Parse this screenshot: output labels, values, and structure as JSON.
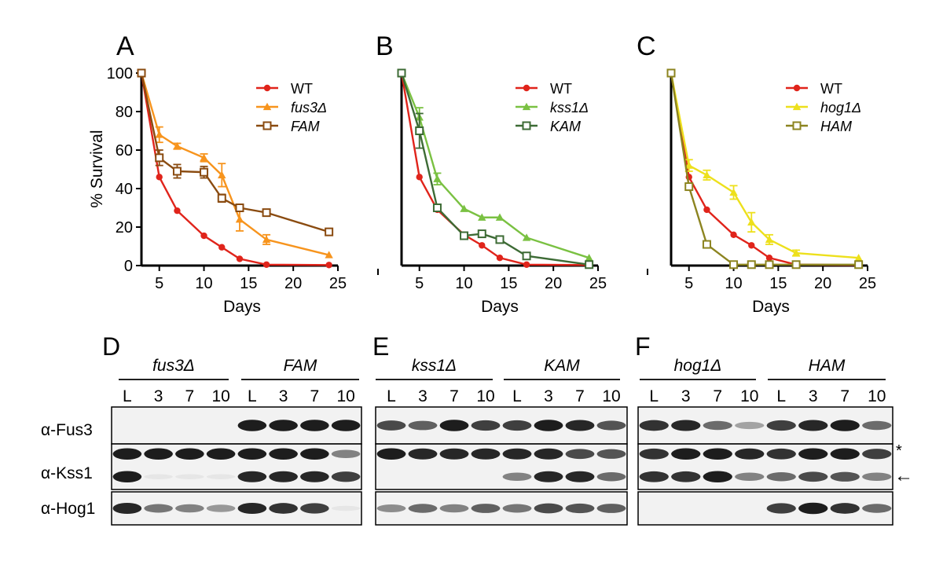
{
  "chart_data": [
    {
      "type": "line",
      "panel": "A",
      "xlabel": "Days",
      "ylabel": "% Survival",
      "xlim": [
        3,
        25
      ],
      "ylim": [
        0,
        100
      ],
      "xticks": [
        5,
        10,
        15,
        20,
        25
      ],
      "yticks": [
        0,
        20,
        40,
        60,
        80,
        100
      ],
      "legend_position": "top-right",
      "series": [
        {
          "name": "WT",
          "italic": false,
          "marker": "circle",
          "color": "#e0241b",
          "x": [
            3,
            5,
            7,
            10,
            12,
            14,
            17,
            24
          ],
          "y": [
            100,
            46,
            28.5,
            15.5,
            9.5,
            3.5,
            0.5,
            0.3
          ],
          "err": [
            0,
            0,
            0,
            0,
            0,
            0,
            0,
            0
          ]
        },
        {
          "name": "fus3Δ",
          "italic": true,
          "marker": "triangle",
          "color": "#f7941d",
          "x": [
            3,
            5,
            7,
            10,
            12,
            14,
            17,
            24
          ],
          "y": [
            100,
            68,
            62,
            56,
            47,
            24,
            13.5,
            5.5
          ],
          "err": [
            0,
            4,
            1.5,
            2,
            6,
            6,
            2.5,
            0
          ]
        },
        {
          "name": "FAM",
          "italic": true,
          "marker": "square",
          "color": "#8a4b10",
          "x": [
            3,
            5,
            7,
            10,
            12,
            14,
            17,
            24
          ],
          "y": [
            100,
            56,
            49,
            48.5,
            35,
            30,
            27.5,
            17.5
          ],
          "err": [
            0,
            4,
            3.5,
            3,
            2,
            0,
            0,
            0
          ]
        }
      ]
    },
    {
      "type": "line",
      "panel": "B",
      "xlabel": "Days",
      "ylabel": "",
      "xlim": [
        3,
        25
      ],
      "ylim": [
        0,
        100
      ],
      "xticks": [
        5,
        10,
        15,
        20,
        25
      ],
      "yticks": [],
      "legend_position": "top-right",
      "series": [
        {
          "name": "WT",
          "italic": false,
          "marker": "circle",
          "color": "#e0241b",
          "x": [
            3,
            5,
            7,
            10,
            12,
            14,
            17,
            24
          ],
          "y": [
            100,
            46,
            29,
            16,
            10.5,
            4,
            0.5,
            0.3
          ],
          "err": [
            0,
            0,
            0,
            0,
            0,
            0,
            0,
            0
          ]
        },
        {
          "name": "kss1Δ",
          "italic": true,
          "marker": "triangle",
          "color": "#7ac142",
          "x": [
            3,
            5,
            7,
            10,
            12,
            14,
            17,
            24
          ],
          "y": [
            100,
            77,
            45,
            29.5,
            25,
            25,
            14.5,
            4
          ],
          "err": [
            0,
            5,
            3,
            0,
            0,
            0,
            0,
            0
          ]
        },
        {
          "name": "KAM",
          "italic": true,
          "marker": "square",
          "color": "#3d6b35",
          "x": [
            3,
            5,
            7,
            10,
            12,
            14,
            17,
            24
          ],
          "y": [
            100,
            70,
            30,
            15.5,
            16.5,
            13.5,
            5,
            0.5
          ],
          "err": [
            0,
            9,
            0,
            0,
            0,
            0,
            0,
            0
          ]
        }
      ]
    },
    {
      "type": "line",
      "panel": "C",
      "xlabel": "Days",
      "ylabel": "",
      "xlim": [
        3,
        25
      ],
      "ylim": [
        0,
        100
      ],
      "xticks": [
        5,
        10,
        15,
        20,
        25
      ],
      "yticks": [],
      "legend_position": "top-right",
      "series": [
        {
          "name": "WT",
          "italic": false,
          "marker": "circle",
          "color": "#e0241b",
          "x": [
            3,
            5,
            7,
            10,
            12,
            14,
            17,
            24
          ],
          "y": [
            100,
            46,
            29,
            16,
            10.5,
            4,
            0.5,
            0.3
          ],
          "err": [
            0,
            0,
            0,
            0,
            0,
            0,
            0,
            0
          ]
        },
        {
          "name": "hog1Δ",
          "italic": true,
          "marker": "triangle",
          "color": "#ede01c",
          "x": [
            3,
            5,
            7,
            10,
            12,
            14,
            17,
            24
          ],
          "y": [
            100,
            52,
            47,
            38,
            22.5,
            13.5,
            6.5,
            4
          ],
          "err": [
            0,
            3,
            2.5,
            3.5,
            5,
            2.5,
            1.5,
            0
          ]
        },
        {
          "name": "HAM",
          "italic": true,
          "marker": "square",
          "color": "#8c8420",
          "x": [
            3,
            5,
            7,
            10,
            12,
            14,
            17,
            24
          ],
          "y": [
            100,
            41,
            11,
            0.5,
            0.5,
            0.5,
            0.5,
            0.5
          ],
          "err": [
            0,
            0,
            0,
            0,
            0,
            0,
            0,
            0
          ]
        }
      ]
    },
    {
      "type": "western-blot",
      "panels": [
        {
          "letter": "D",
          "groups": [
            {
              "label": "fus3Δ",
              "lanes": [
                "L",
                "3",
                "7",
                "10"
              ]
            },
            {
              "label": "FAM",
              "lanes": [
                "L",
                "3",
                "7",
                "10"
              ]
            }
          ]
        },
        {
          "letter": "E",
          "groups": [
            {
              "label": "kss1Δ",
              "lanes": [
                "L",
                "3",
                "7",
                "10"
              ]
            },
            {
              "label": "KAM",
              "lanes": [
                "L",
                "3",
                "7",
                "10"
              ]
            }
          ]
        },
        {
          "letter": "F",
          "groups": [
            {
              "label": "hog1Δ",
              "lanes": [
                "L",
                "3",
                "7",
                "10"
              ]
            },
            {
              "label": "HAM",
              "lanes": [
                "L",
                "3",
                "7",
                "10"
              ]
            }
          ]
        }
      ],
      "row_labels": [
        "α-Fus3",
        "α-Kss1",
        "α-Hog1"
      ],
      "annotations": {
        "asterisk": "*",
        "arrow": "←"
      },
      "band_intensity": {
        "D": {
          "Fus3": [
            [
              0,
              0,
              0,
              0,
              0.95,
              0.95,
              0.95,
              0.95
            ]
          ],
          "Kss1": [
            [
              0.95,
              0.95,
              0.95,
              0.95,
              0.95,
              0.95,
              0.95,
              0.5
            ],
            [
              0.95,
              0.05,
              0.05,
              0.05,
              0.9,
              0.9,
              0.9,
              0.8
            ]
          ],
          "Hog1": [
            [
              0.9,
              0.55,
              0.5,
              0.4,
              0.9,
              0.85,
              0.8,
              0.05
            ]
          ]
        },
        "E": {
          "Fus3": [
            [
              0.75,
              0.65,
              0.95,
              0.8,
              0.8,
              0.95,
              0.9,
              0.7
            ]
          ],
          "Kss1": [
            [
              0.95,
              0.9,
              0.9,
              0.9,
              0.9,
              0.9,
              0.75,
              0.7
            ],
            [
              0,
              0,
              0,
              0,
              0.5,
              0.9,
              0.9,
              0.6
            ]
          ],
          "Hog1": [
            [
              0.45,
              0.6,
              0.5,
              0.65,
              0.55,
              0.75,
              0.7,
              0.65
            ]
          ]
        },
        "F": {
          "Fus3": [
            [
              0.85,
              0.9,
              0.6,
              0.35,
              0.8,
              0.9,
              0.95,
              0.6
            ]
          ],
          "Kss1": [
            [
              0.85,
              0.95,
              0.95,
              0.9,
              0.85,
              0.95,
              0.95,
              0.8
            ],
            [
              0.85,
              0.85,
              0.95,
              0.5,
              0.6,
              0.75,
              0.7,
              0.5
            ]
          ],
          "Hog1": [
            [
              0,
              0,
              0,
              0,
              0.8,
              0.95,
              0.85,
              0.6
            ]
          ]
        }
      }
    }
  ]
}
